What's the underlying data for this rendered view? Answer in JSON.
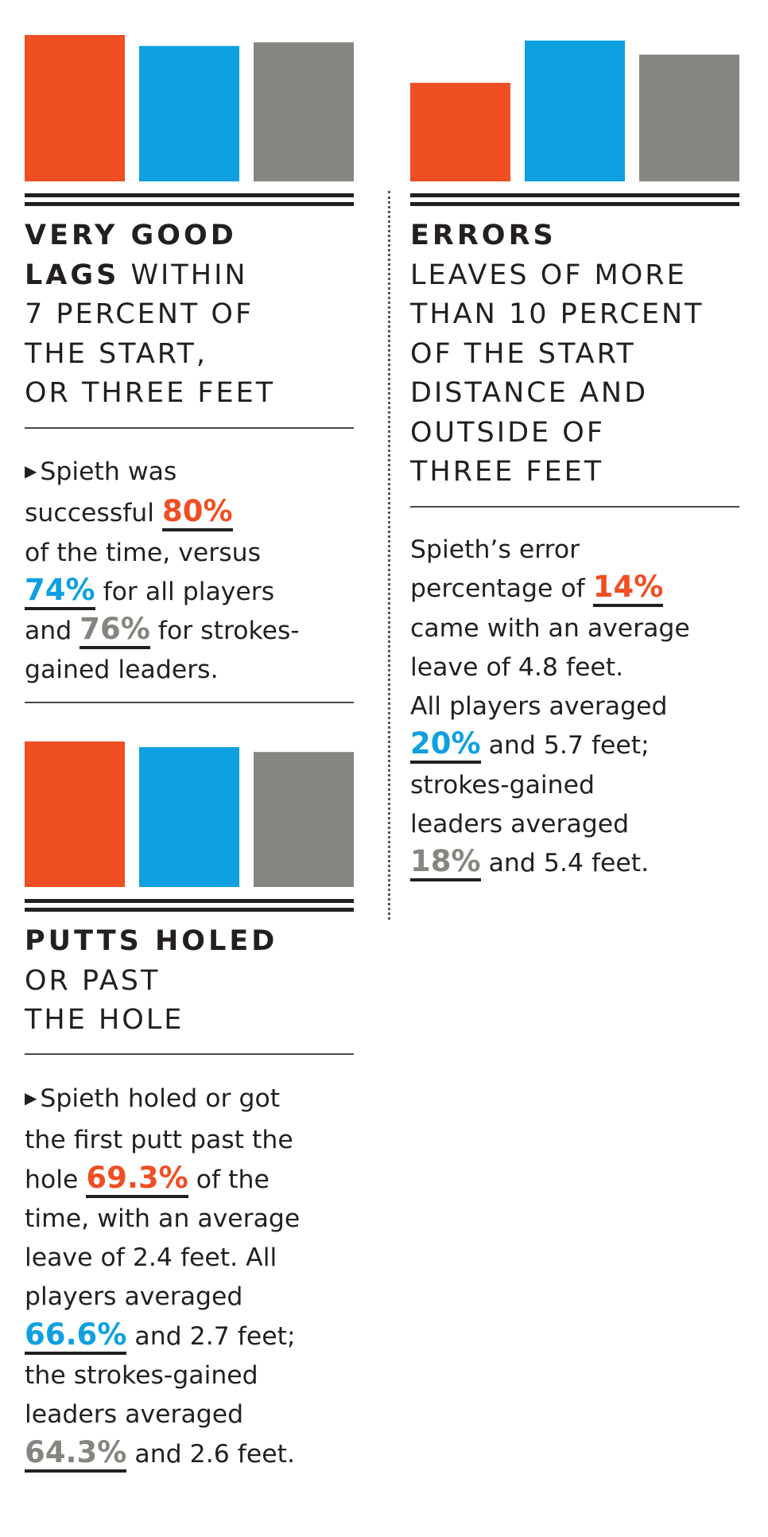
{
  "colors": {
    "orange": "#f04e23",
    "blue": "#0ea0e0",
    "gray": "#868680",
    "ink": "#231f20"
  },
  "chart_data": [
    {
      "type": "bar",
      "categories": [
        "Spieth",
        "All players",
        "Strokes-gained leaders"
      ],
      "values": [
        80,
        74,
        76
      ],
      "ylim": [
        0,
        80
      ]
    },
    {
      "type": "bar",
      "categories": [
        "Spieth",
        "All players",
        "Strokes-gained leaders"
      ],
      "values": [
        14,
        20,
        18
      ],
      "ylim": [
        0,
        20
      ]
    },
    {
      "type": "bar",
      "categories": [
        "Spieth",
        "All players",
        "Strokes-gained leaders"
      ],
      "values": [
        69.3,
        66.6,
        64.3
      ],
      "ylim": [
        0,
        69.3
      ]
    }
  ],
  "lags": {
    "heading_bold_1": "VERY GOOD",
    "heading_bold_2": "LAGS",
    "heading_rest_2": " WITHIN",
    "heading_3": "7 PERCENT OF",
    "heading_4": "THE START,",
    "heading_5": "OR THREE FEET",
    "bullet": "▶",
    "l1": "Spieth was",
    "l2a": "successful ",
    "p1": "80%",
    "l3": "of the time, versus",
    "p2": "74%",
    "l4b": " for all players",
    "l5a": "and ",
    "p3": "76%",
    "l5b": " for strokes-",
    "l6": "gained leaders."
  },
  "errors": {
    "heading_bold": "ERRORS",
    "heading_2": "LEAVES OF MORE",
    "heading_3": "THAN 10 PERCENT",
    "heading_4": "OF THE START",
    "heading_5": "DISTANCE AND",
    "heading_6": "OUTSIDE OF",
    "heading_7": "THREE FEET",
    "l1": "Spieth’s error",
    "l2a": "percentage of ",
    "p1": "14%",
    "l3": "came with an average",
    "l4": "leave of 4.8 feet.",
    "l5": "All players averaged",
    "p2": "20%",
    "l6b": " and 5.7 feet;",
    "l7": "strokes-gained",
    "l8": "leaders averaged",
    "p3": "18%",
    "l9b": "  and 5.4 feet."
  },
  "putts": {
    "heading_bold": "PUTTS HOLED",
    "heading_2": "OR PAST",
    "heading_3": "THE HOLE",
    "bullet": "▶",
    "l1": "Spieth holed or got",
    "l2": "the first putt past the",
    "l3a": "hole ",
    "p1": "69.3%",
    "l3b": " of the",
    "l4": "time, with an average",
    "l5": "leave of 2.4 feet. All",
    "l6": "players averaged",
    "p2": "66.6%",
    "l7b": " and 2.7 feet;",
    "l8": "the strokes-gained",
    "l9": "leaders averaged",
    "p3": "64.3%",
    "l10b": " and 2.6 feet."
  }
}
